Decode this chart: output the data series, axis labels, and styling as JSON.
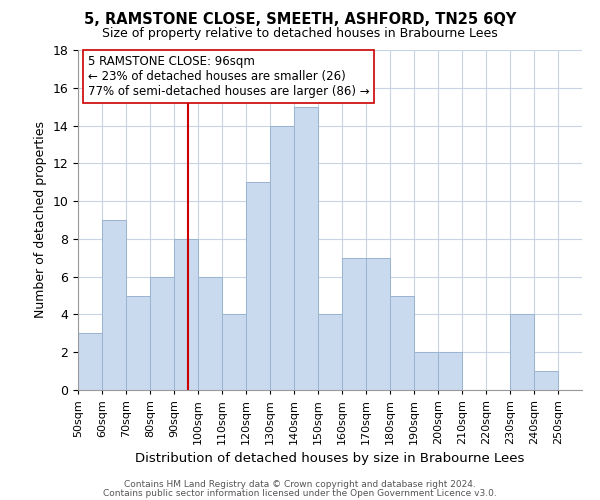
{
  "title": "5, RAMSTONE CLOSE, SMEETH, ASHFORD, TN25 6QY",
  "subtitle": "Size of property relative to detached houses in Brabourne Lees",
  "xlabel": "Distribution of detached houses by size in Brabourne Lees",
  "ylabel": "Number of detached properties",
  "bin_edges": [
    50,
    60,
    70,
    80,
    90,
    100,
    110,
    120,
    130,
    140,
    150,
    160,
    170,
    180,
    190,
    200,
    210,
    220,
    230,
    240,
    250
  ],
  "counts": [
    3,
    9,
    5,
    6,
    8,
    6,
    4,
    11,
    14,
    15,
    4,
    7,
    7,
    5,
    2,
    2,
    0,
    0,
    4,
    1,
    0
  ],
  "bar_color": "#c9d9ee",
  "bar_edgecolor": "#9ab3d0",
  "grid_color": "#c8d4e4",
  "ref_line_x": 96,
  "ref_line_color": "#cc0000",
  "ylim": [
    0,
    18
  ],
  "yticks": [
    0,
    2,
    4,
    6,
    8,
    10,
    12,
    14,
    16,
    18
  ],
  "footnote1": "Contains HM Land Registry data © Crown copyright and database right 2024.",
  "footnote2": "Contains public sector information licensed under the Open Government Licence v3.0.",
  "background_color": "#ffffff",
  "ann_title": "5 RAMSTONE CLOSE: 96sqm",
  "ann_line2": "← 23% of detached houses are smaller (26)",
  "ann_line3": "77% of semi-detached houses are larger (86) →"
}
